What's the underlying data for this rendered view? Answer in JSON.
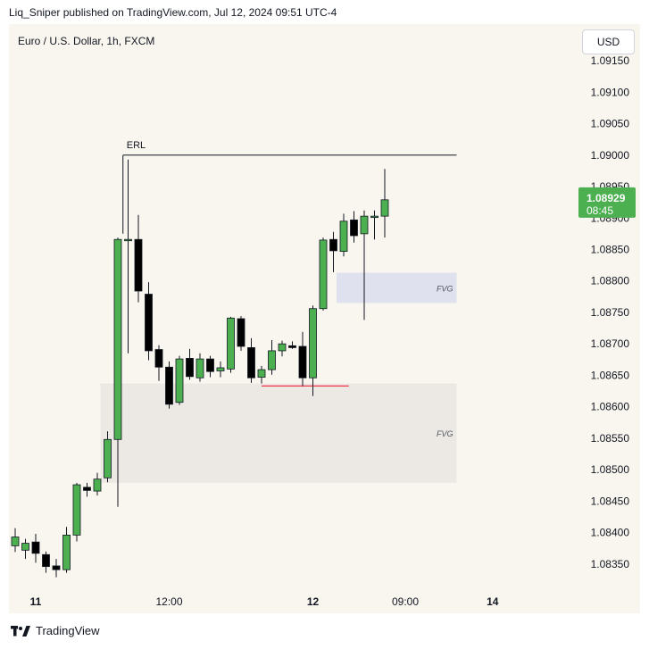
{
  "header": {
    "published": "Liq_Sniper published on TradingView.com, Jul 12, 2024 09:51 UTC-4"
  },
  "symbol": {
    "title": "Euro / U.S. Dollar, 1h, FXCM"
  },
  "currency_button": {
    "label": "USD"
  },
  "footer": {
    "brand": "TradingView"
  },
  "colors": {
    "bull": "#4caf50",
    "bear": "#000000",
    "zone": "#ece9e4",
    "zone_blue": "#dfe1ef",
    "price_badge": "#4caf50",
    "background": "#f9f6ef"
  },
  "chart_data": {
    "type": "candlestick",
    "symbol": "EUR/USD",
    "timeframe": "1h",
    "ylim": [
      1.0831,
      1.0917
    ],
    "y_ticks": [
      1.0835,
      1.084,
      1.0845,
      1.085,
      1.0855,
      1.086,
      1.0865,
      1.087,
      1.0875,
      1.088,
      1.0885,
      1.089,
      1.0895,
      1.09,
      1.0905,
      1.091,
      1.0915
    ],
    "y_tick_labels": [
      "1.08350",
      "1.08400",
      "1.08450",
      "1.08500",
      "1.08550",
      "1.08600",
      "1.08650",
      "1.08700",
      "1.08750",
      "1.08800",
      "1.08850",
      "1.08900",
      "1.08950",
      "1.09000",
      "1.09050",
      "1.09100",
      "1.09150"
    ],
    "x_ticks": [
      {
        "label": "11",
        "index": 2
      },
      {
        "label": "12:00",
        "index": 15
      },
      {
        "label": "12",
        "index": 29
      },
      {
        "label": "09:00",
        "index": 38
      },
      {
        "label": "14",
        "index": 46.5
      }
    ],
    "candles": [
      {
        "o": 1.08379,
        "h": 1.08407,
        "l": 1.08369,
        "c": 1.08393
      },
      {
        "o": 1.08372,
        "h": 1.0839,
        "l": 1.08358,
        "c": 1.08383
      },
      {
        "o": 1.08385,
        "h": 1.08398,
        "l": 1.08352,
        "c": 1.08367
      },
      {
        "o": 1.08365,
        "h": 1.0837,
        "l": 1.08336,
        "c": 1.08346
      },
      {
        "o": 1.08347,
        "h": 1.08358,
        "l": 1.08329,
        "c": 1.08341
      },
      {
        "o": 1.08341,
        "h": 1.08409,
        "l": 1.08336,
        "c": 1.08396
      },
      {
        "o": 1.08396,
        "h": 1.08479,
        "l": 1.08386,
        "c": 1.08476
      },
      {
        "o": 1.08472,
        "h": 1.08479,
        "l": 1.08457,
        "c": 1.08467
      },
      {
        "o": 1.08466,
        "h": 1.08495,
        "l": 1.08459,
        "c": 1.08485
      },
      {
        "o": 1.08487,
        "h": 1.08561,
        "l": 1.0848,
        "c": 1.08548
      },
      {
        "o": 1.08548,
        "h": 1.08869,
        "l": 1.08441,
        "c": 1.08866
      },
      {
        "o": 1.08866,
        "h": 1.08993,
        "l": 1.08685,
        "c": 1.08866
      },
      {
        "o": 1.08866,
        "h": 1.08905,
        "l": 1.08766,
        "c": 1.08784
      },
      {
        "o": 1.08779,
        "h": 1.08798,
        "l": 1.08674,
        "c": 1.08689
      },
      {
        "o": 1.08691,
        "h": 1.08698,
        "l": 1.08641,
        "c": 1.08663
      },
      {
        "o": 1.08663,
        "h": 1.08672,
        "l": 1.08597,
        "c": 1.08604
      },
      {
        "o": 1.08607,
        "h": 1.08681,
        "l": 1.08603,
        "c": 1.08676
      },
      {
        "o": 1.08677,
        "h": 1.08692,
        "l": 1.08643,
        "c": 1.08648
      },
      {
        "o": 1.08646,
        "h": 1.08685,
        "l": 1.0864,
        "c": 1.08676
      },
      {
        "o": 1.08676,
        "h": 1.08681,
        "l": 1.08647,
        "c": 1.08656
      },
      {
        "o": 1.08657,
        "h": 1.08672,
        "l": 1.08647,
        "c": 1.08662
      },
      {
        "o": 1.0866,
        "h": 1.08743,
        "l": 1.08654,
        "c": 1.08741
      },
      {
        "o": 1.0874,
        "h": 1.08744,
        "l": 1.08689,
        "c": 1.08696
      },
      {
        "o": 1.08694,
        "h": 1.08709,
        "l": 1.08638,
        "c": 1.08646
      },
      {
        "o": 1.08647,
        "h": 1.08665,
        "l": 1.08637,
        "c": 1.08659
      },
      {
        "o": 1.08659,
        "h": 1.08706,
        "l": 1.08651,
        "c": 1.08689
      },
      {
        "o": 1.08689,
        "h": 1.08705,
        "l": 1.0868,
        "c": 1.087
      },
      {
        "o": 1.08697,
        "h": 1.08704,
        "l": 1.08692,
        "c": 1.08694
      },
      {
        "o": 1.08696,
        "h": 1.08719,
        "l": 1.08633,
        "c": 1.08646
      },
      {
        "o": 1.08646,
        "h": 1.08761,
        "l": 1.08617,
        "c": 1.08756
      },
      {
        "o": 1.08756,
        "h": 1.08869,
        "l": 1.08753,
        "c": 1.08865
      },
      {
        "o": 1.08866,
        "h": 1.08878,
        "l": 1.08814,
        "c": 1.08848
      },
      {
        "o": 1.08847,
        "h": 1.08907,
        "l": 1.08839,
        "c": 1.08895
      },
      {
        "o": 1.08897,
        "h": 1.08911,
        "l": 1.08861,
        "c": 1.08872
      },
      {
        "o": 1.08875,
        "h": 1.08912,
        "l": 1.08738,
        "c": 1.08903
      },
      {
        "o": 1.08903,
        "h": 1.08912,
        "l": 1.08866,
        "c": 1.08903
      },
      {
        "o": 1.08903,
        "h": 1.08978,
        "l": 1.08869,
        "c": 1.08929
      }
    ],
    "annotations": {
      "erl": {
        "label": "ERL",
        "price": 1.09,
        "start_index": 10.5,
        "end_index": 43
      },
      "fvg_upper": {
        "label": "FVG",
        "from": 1.08765,
        "to": 1.08813,
        "start_index": 31.3,
        "end_index": 43
      },
      "fvg_lower": {
        "label": "FVG",
        "from": 1.08479,
        "to": 1.08637,
        "start_index": 8.3,
        "end_index": 43
      },
      "red_line": {
        "price": 1.08633,
        "start_index": 24,
        "end_index": 32.5,
        "color": "#f23645"
      }
    },
    "last_price": {
      "value": "1.08929",
      "countdown": "08:45"
    }
  }
}
